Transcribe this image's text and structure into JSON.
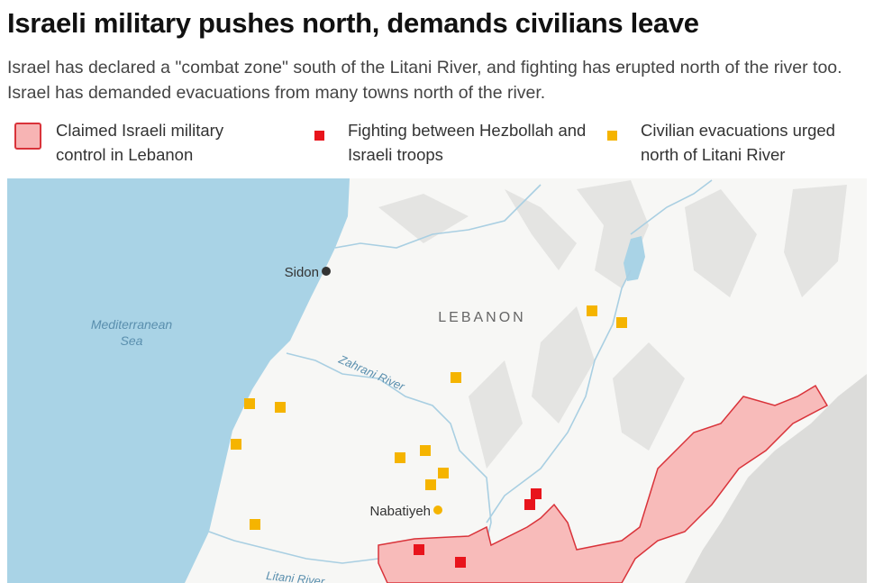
{
  "header": {
    "title": "Israeli military pushes north, demands civilians leave",
    "subtitle": "Israel has declared a \"combat zone\" south of the Litani River, and fighting has erupted north of the river too. Israel has demanded evacuations from many towns north of the river."
  },
  "legend": {
    "items": [
      "Claimed Israeli military control in Lebanon",
      "Fighting between Hezbollah and Israeli troops",
      "Civilian evacuations urged north of Litani River"
    ]
  },
  "map": {
    "labels": {
      "sidon": "Sidon",
      "country": "LEBANON",
      "sea": [
        "Mediterranean",
        "Sea"
      ],
      "zahrani": "Zahrani River",
      "nabatiyeh": "Nabatiyeh",
      "litani": "Litani River"
    }
  }
}
